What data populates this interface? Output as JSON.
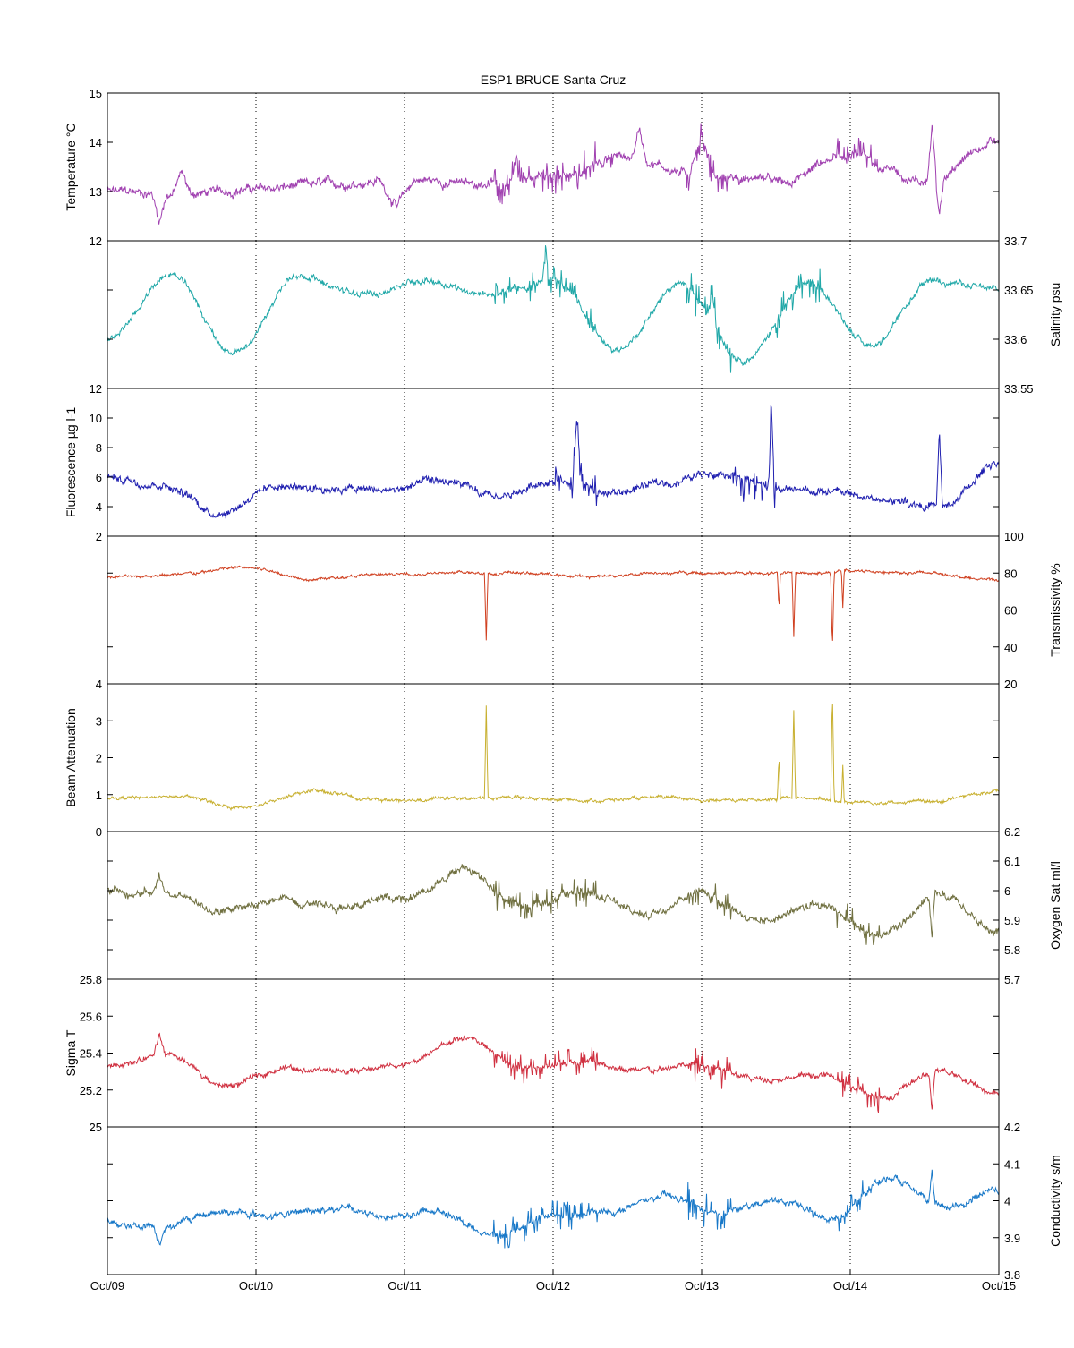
{
  "chart_data": {
    "type": "line",
    "title": "ESP1 BRUCE Santa Cruz",
    "x": {
      "range": [
        "Oct/09",
        "Oct/15"
      ],
      "ticks": [
        "Oct/09",
        "Oct/10",
        "Oct/11",
        "Oct/12",
        "Oct/13",
        "Oct/14",
        "Oct/15"
      ],
      "grid": "dotted vertical lines at each day"
    },
    "panels": [
      {
        "name": "temperature",
        "ylabel": "Temperature °C",
        "axis_side": "left",
        "ylim": [
          12,
          15
        ],
        "ticks": [
          "12",
          "13",
          "14",
          "15"
        ],
        "minor_ticks": [],
        "color": "#a040b0",
        "baseline": [
          13.0,
          12.95,
          13.05,
          13.15,
          13.25,
          13.15,
          13.3,
          13.7,
          13.3,
          13.2,
          13.7,
          13.2,
          14.0
        ],
        "noise": 0.12,
        "spike_zones": [
          [
            2.6,
            3.4,
            0.35
          ],
          [
            3.9,
            4.2,
            0.35
          ],
          [
            4.9,
            5.2,
            0.35
          ]
        ],
        "events": [
          [
            0.35,
            -0.55,
            0.05
          ],
          [
            0.5,
            0.45,
            0.06
          ],
          [
            1.95,
            -0.55,
            0.12
          ],
          [
            2.75,
            0.55,
            0.03
          ],
          [
            3.58,
            0.6,
            0.05
          ],
          [
            4.0,
            0.8,
            0.08
          ],
          [
            5.55,
            1.1,
            0.03
          ],
          [
            5.6,
            -0.8,
            0.03
          ]
        ]
      },
      {
        "name": "salinity",
        "ylabel": "Salinity psu",
        "axis_side": "right",
        "ylim": [
          33.55,
          33.7
        ],
        "ticks": [
          "33.55",
          "33.6",
          "33.65",
          "33.7"
        ],
        "minor_ticks": [],
        "color": "#20a8a8",
        "baseline": [
          33.6,
          33.665,
          33.585,
          33.665,
          33.645,
          33.66,
          33.645,
          33.66,
          33.59,
          33.655,
          33.58,
          33.655,
          33.595,
          33.66,
          33.65
        ],
        "noise": 0.004,
        "spike_zones": [
          [
            2.6,
            3.3,
            0.015
          ],
          [
            3.9,
            4.2,
            0.02
          ],
          [
            4.5,
            4.8,
            0.02
          ]
        ],
        "events": [
          [
            2.95,
            0.035,
            0.02
          ],
          [
            4.07,
            0.03,
            0.03
          ]
        ]
      },
      {
        "name": "fluorescence",
        "ylabel": "Fluorescence µg l-1",
        "axis_side": "left",
        "ylim": [
          2,
          12
        ],
        "ticks": [
          "2",
          "4",
          "6",
          "8",
          "10",
          "12"
        ],
        "minor_ticks": [],
        "color": "#2020b0",
        "baseline": [
          6.0,
          5.5,
          3.6,
          5.4,
          5.3,
          5.1,
          5.7,
          4.6,
          5.8,
          4.9,
          5.6,
          6.4,
          5.1,
          5.0,
          4.4,
          4.0,
          7.0
        ],
        "noise": 0.35,
        "spike_zones": [
          [
            3.0,
            3.3,
            1.2
          ],
          [
            4.2,
            4.5,
            1.5
          ]
        ],
        "events": [
          [
            3.16,
            4.5,
            0.03
          ],
          [
            4.47,
            5.5,
            0.02
          ],
          [
            5.6,
            5.0,
            0.02
          ]
        ]
      },
      {
        "name": "transmissivity",
        "ylabel": "Transmissivity %",
        "axis_side": "right",
        "ylim": [
          20,
          100
        ],
        "ticks": [
          "20",
          "40",
          "60",
          "80",
          "100"
        ],
        "minor_ticks": [],
        "color": "#d04020",
        "baseline": [
          78,
          79,
          83,
          77,
          79,
          80,
          80,
          78,
          80,
          80,
          80,
          81,
          80,
          76
        ],
        "noise": 1.0,
        "spike_zones": [],
        "events": [
          [
            2.55,
            -36,
            0.012
          ],
          [
            4.62,
            -35,
            0.012
          ],
          [
            4.88,
            -42,
            0.012
          ],
          [
            4.52,
            -20,
            0.01
          ],
          [
            4.95,
            -20,
            0.01
          ]
        ]
      },
      {
        "name": "beam-attenuation",
        "ylabel": "Beam Attenuation",
        "axis_side": "left",
        "ylim": [
          0,
          4
        ],
        "ticks": [
          "0",
          "1",
          "2",
          "3",
          "4"
        ],
        "minor_ticks": [],
        "color": "#c8b030",
        "baseline": [
          0.9,
          0.95,
          0.65,
          1.1,
          0.85,
          0.9,
          0.9,
          0.85,
          0.9,
          0.85,
          0.9,
          0.8,
          0.8,
          1.1
        ],
        "noise": 0.06,
        "spike_zones": [],
        "events": [
          [
            2.55,
            2.5,
            0.012
          ],
          [
            4.62,
            2.4,
            0.012
          ],
          [
            4.88,
            3.0,
            0.012
          ],
          [
            4.52,
            1.2,
            0.01
          ],
          [
            4.95,
            1.0,
            0.01
          ]
        ]
      },
      {
        "name": "oxygen-sat",
        "ylabel": "Oxygen Sat ml/l",
        "axis_side": "right",
        "ylim": [
          5.7,
          6.2
        ],
        "ticks": [
          "5.7",
          "5.8",
          "5.9",
          "6",
          "6.1",
          "6.2"
        ],
        "minor_ticks": [],
        "color": "#707040",
        "baseline": [
          6.0,
          5.99,
          5.93,
          5.97,
          5.95,
          5.98,
          6.07,
          5.95,
          6.0,
          5.92,
          6.0,
          5.9,
          5.96,
          5.84,
          5.98,
          5.86
        ],
        "noise": 0.018,
        "spike_zones": [
          [
            2.6,
            3.3,
            0.05
          ],
          [
            3.9,
            4.2,
            0.05
          ],
          [
            4.9,
            5.2,
            0.05
          ]
        ],
        "events": [
          [
            0.35,
            0.06,
            0.04
          ],
          [
            5.55,
            -0.15,
            0.02
          ]
        ]
      },
      {
        "name": "sigma-t",
        "ylabel": "Sigma T",
        "axis_side": "left",
        "ylim": [
          25,
          25.8
        ],
        "ticks": [
          "25",
          "25.2",
          "25.4",
          "25.6",
          "25.8"
        ],
        "minor_ticks": [],
        "color": "#d03040",
        "baseline": [
          25.34,
          25.38,
          25.22,
          25.32,
          25.3,
          25.34,
          25.48,
          25.32,
          25.35,
          25.3,
          25.34,
          25.26,
          25.28,
          25.16,
          25.3,
          25.18
        ],
        "noise": 0.02,
        "spike_zones": [
          [
            2.6,
            3.3,
            0.08
          ],
          [
            3.9,
            4.2,
            0.1
          ],
          [
            4.9,
            5.2,
            0.08
          ]
        ],
        "events": [
          [
            0.35,
            0.12,
            0.04
          ],
          [
            5.55,
            -0.2,
            0.02
          ]
        ]
      },
      {
        "name": "conductivity",
        "ylabel": "Conductivity s/m",
        "axis_side": "right",
        "ylim": [
          3.8,
          4.2
        ],
        "ticks": [
          "3.8",
          "3.9",
          "4",
          "4.1",
          "4.2"
        ],
        "minor_ticks": [],
        "color": "#1878c8",
        "baseline": [
          3.94,
          3.93,
          3.97,
          3.96,
          3.98,
          3.96,
          3.97,
          3.9,
          3.96,
          3.97,
          4.01,
          3.97,
          4.0,
          3.95,
          4.06,
          3.98,
          4.03
        ],
        "noise": 0.012,
        "spike_zones": [
          [
            2.6,
            3.3,
            0.04
          ],
          [
            3.9,
            4.2,
            0.05
          ],
          [
            4.9,
            5.2,
            0.04
          ]
        ],
        "events": [
          [
            0.35,
            -0.05,
            0.04
          ],
          [
            5.55,
            0.09,
            0.02
          ]
        ]
      }
    ]
  }
}
